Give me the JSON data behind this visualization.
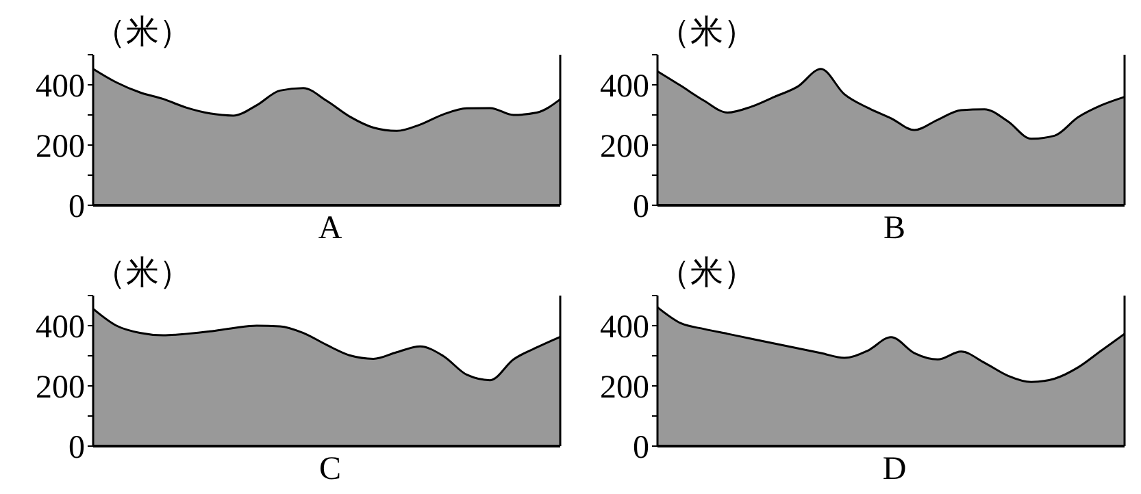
{
  "chart_data": [
    {
      "type": "area",
      "ylabel": "（米）",
      "xlabel": "A",
      "categories": [
        null,
        null,
        null,
        null,
        null,
        null,
        null,
        null,
        null,
        null,
        null,
        null,
        null,
        null,
        null,
        null,
        null,
        null,
        null,
        null,
        null
      ],
      "values": [
        453,
        408,
        375,
        353,
        324,
        305,
        298,
        332,
        381,
        389,
        347,
        294,
        258,
        247,
        268,
        302,
        322,
        323,
        300,
        308,
        352
      ],
      "color": "#999999",
      "ylim": [
        0,
        500
      ],
      "yticks": [
        0,
        {
          "value": 100,
          "label": null
        },
        200,
        {
          "value": 300,
          "label": null
        },
        400,
        {
          "value": 500,
          "label": null
        }
      ],
      "tick_labels": "y",
      "grid": false
    },
    {
      "type": "area",
      "ylabel": "（米）",
      "xlabel": "B",
      "categories": [
        null,
        null,
        null,
        null,
        null,
        null,
        null,
        null,
        null,
        null,
        null,
        null,
        null,
        null,
        null,
        null,
        null,
        null,
        null,
        null,
        null
      ],
      "values": [
        445,
        397,
        347,
        308,
        327,
        360,
        394,
        453,
        369,
        324,
        289,
        250,
        284,
        316,
        319,
        279,
        221,
        231,
        292,
        332,
        360
      ],
      "color": "#999999",
      "ylim": [
        0,
        500
      ],
      "yticks": [
        0,
        {
          "value": 100,
          "label": null
        },
        200,
        {
          "value": 300,
          "label": null
        },
        400,
        {
          "value": 500,
          "label": null
        }
      ],
      "tick_labels": "y",
      "grid": false
    },
    {
      "type": "area",
      "ylabel": "（米）",
      "xlabel": "C",
      "categories": [
        null,
        null,
        null,
        null,
        null,
        null,
        null,
        null,
        null,
        null,
        null,
        null,
        null,
        null,
        null,
        null,
        null,
        null,
        null,
        null,
        null
      ],
      "values": [
        456,
        400,
        376,
        368,
        373,
        381,
        392,
        400,
        398,
        376,
        336,
        301,
        290,
        312,
        331,
        299,
        237,
        219,
        288,
        328,
        363
      ],
      "color": "#999999",
      "ylim": [
        0,
        500
      ],
      "yticks": [
        0,
        {
          "value": 100,
          "label": null
        },
        200,
        {
          "value": 300,
          "label": null
        },
        400,
        {
          "value": 500,
          "label": null
        }
      ],
      "tick_labels": "y",
      "grid": false
    },
    {
      "type": "area",
      "ylabel": "（米）",
      "xlabel": "D",
      "categories": [
        null,
        null,
        null,
        null,
        null,
        null,
        null,
        null,
        null,
        null,
        null,
        null,
        null,
        null,
        null,
        null,
        null,
        null,
        null,
        null,
        null
      ],
      "values": [
        461,
        408,
        389,
        373,
        357,
        341,
        325,
        309,
        293,
        317,
        362,
        309,
        288,
        314,
        277,
        234,
        213,
        224,
        261,
        317,
        373
      ],
      "color": "#999999",
      "ylim": [
        0,
        500
      ],
      "yticks": [
        0,
        {
          "value": 100,
          "label": null
        },
        200,
        {
          "value": 300,
          "label": null
        },
        400,
        {
          "value": 500,
          "label": null
        }
      ],
      "tick_labels": "y",
      "grid": false
    }
  ]
}
